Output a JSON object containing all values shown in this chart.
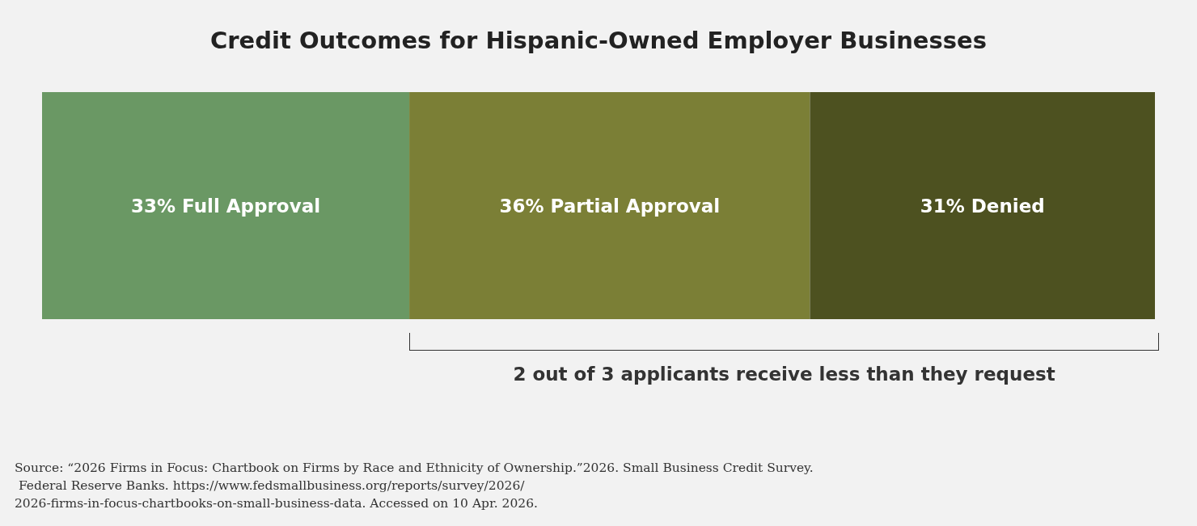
{
  "chart_data": {
    "type": "bar",
    "title": "Credit Outcomes for Hispanic-Owned Employer Businesses",
    "orientation": "horizontal",
    "stacked": true,
    "categories": [
      null
    ],
    "series": [
      {
        "color": "#6a9864",
        "values": [
          33
        ],
        "value_labels": [
          "33% Full Approval"
        ]
      },
      {
        "color": "#7b7f36",
        "values": [
          36
        ],
        "value_labels": [
          "36% Partial Approval"
        ]
      },
      {
        "color": "#4d5120",
        "values": [
          31
        ],
        "value_labels": [
          "31% Denied"
        ]
      }
    ],
    "annotations": [
      "2 out of 3 applicants receive less than they request",
      "Source: “2026 Firms in Focus: Chartbook on Firms by Race and Ethnicity of Ownership.”2026. Small Business Credit Survey. Federal Reserve Banks. https://www.fedsmallbusiness.org/reports/survey/2026/2026-firms-in-focus-chartbooks-on-small-business-data. Accessed on 10 Apr. 2026."
    ]
  }
}
